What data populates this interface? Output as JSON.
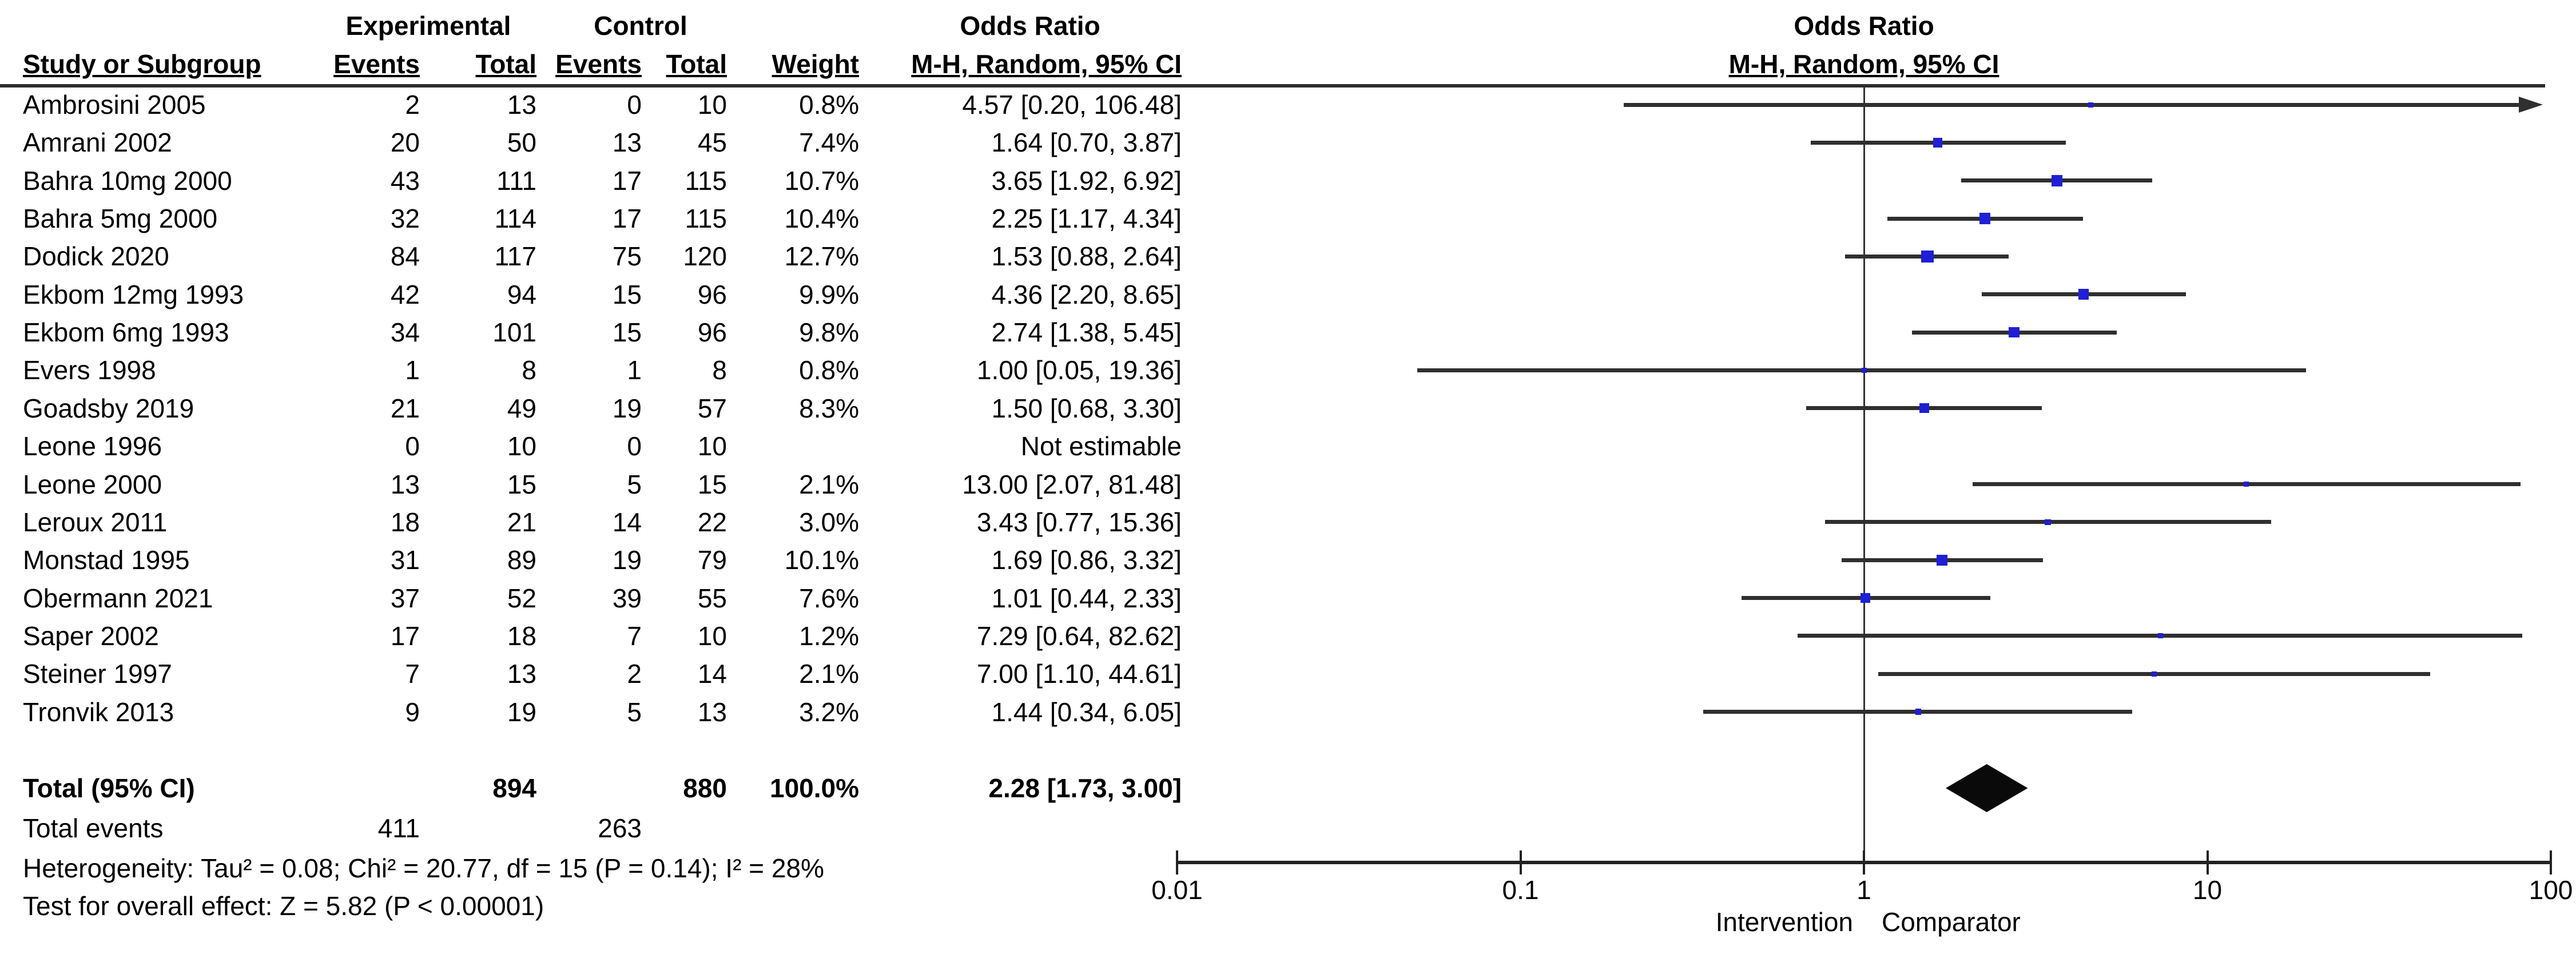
{
  "table_header": {
    "group1": "Experimental",
    "group2": "Control",
    "effect_header_top": "Odds Ratio",
    "study_col": "Study or Subgroup",
    "events_col": "Events",
    "total_col": "Total",
    "weight_col": "Weight",
    "method_col": "M-H, Random, 95% CI"
  },
  "plot_header": {
    "title": "Odds Ratio",
    "subtitle": "M-H, Random, 95% CI"
  },
  "chart_data": {
    "type": "forest",
    "x_scale": "log10",
    "xlim": [
      0.01,
      100
    ],
    "null_line": 1,
    "grid": false,
    "marker_color": "#1f1fd6",
    "line_color": "#2f2f2f",
    "axis_ticks": [
      0.01,
      0.1,
      1,
      10,
      100
    ],
    "axis_tick_labels": [
      "0.01",
      "0.1",
      "1",
      "10",
      "100"
    ],
    "axis_caption_left": "Intervention",
    "axis_caption_right": "Comparator",
    "studies": [
      {
        "name": "Ambrosini 2005",
        "exp_events": "2",
        "exp_total": "13",
        "ctrl_events": "0",
        "ctrl_total": "10",
        "weight": "0.8%",
        "weight_pct": 0.8,
        "ci_label": "4.57 [0.20, 106.48]",
        "or": 4.57,
        "lo": 0.2,
        "hi": 106.48,
        "arrow_hi": true
      },
      {
        "name": "Amrani 2002",
        "exp_events": "20",
        "exp_total": "50",
        "ctrl_events": "13",
        "ctrl_total": "45",
        "weight": "7.4%",
        "weight_pct": 7.4,
        "ci_label": "1.64 [0.70, 3.87]",
        "or": 1.64,
        "lo": 0.7,
        "hi": 3.87,
        "arrow_hi": false
      },
      {
        "name": "Bahra 10mg 2000",
        "exp_events": "43",
        "exp_total": "111",
        "ctrl_events": "17",
        "ctrl_total": "115",
        "weight": "10.7%",
        "weight_pct": 10.7,
        "ci_label": "3.65 [1.92, 6.92]",
        "or": 3.65,
        "lo": 1.92,
        "hi": 6.92,
        "arrow_hi": false
      },
      {
        "name": "Bahra 5mg 2000",
        "exp_events": "32",
        "exp_total": "114",
        "ctrl_events": "17",
        "ctrl_total": "115",
        "weight": "10.4%",
        "weight_pct": 10.4,
        "ci_label": "2.25 [1.17, 4.34]",
        "or": 2.25,
        "lo": 1.17,
        "hi": 4.34,
        "arrow_hi": false
      },
      {
        "name": "Dodick 2020",
        "exp_events": "84",
        "exp_total": "117",
        "ctrl_events": "75",
        "ctrl_total": "120",
        "weight": "12.7%",
        "weight_pct": 12.7,
        "ci_label": "1.53 [0.88, 2.64]",
        "or": 1.53,
        "lo": 0.88,
        "hi": 2.64,
        "arrow_hi": false
      },
      {
        "name": "Ekbom 12mg 1993",
        "exp_events": "42",
        "exp_total": "94",
        "ctrl_events": "15",
        "ctrl_total": "96",
        "weight": "9.9%",
        "weight_pct": 9.9,
        "ci_label": "4.36 [2.20, 8.65]",
        "or": 4.36,
        "lo": 2.2,
        "hi": 8.65,
        "arrow_hi": false
      },
      {
        "name": "Ekbom 6mg 1993",
        "exp_events": "34",
        "exp_total": "101",
        "ctrl_events": "15",
        "ctrl_total": "96",
        "weight": "9.8%",
        "weight_pct": 9.8,
        "ci_label": "2.74 [1.38, 5.45]",
        "or": 2.74,
        "lo": 1.38,
        "hi": 5.45,
        "arrow_hi": false
      },
      {
        "name": "Evers 1998",
        "exp_events": "1",
        "exp_total": "8",
        "ctrl_events": "1",
        "ctrl_total": "8",
        "weight": "0.8%",
        "weight_pct": 0.8,
        "ci_label": "1.00 [0.05, 19.36]",
        "or": 1.0,
        "lo": 0.05,
        "hi": 19.36,
        "arrow_hi": false
      },
      {
        "name": "Goadsby 2019",
        "exp_events": "21",
        "exp_total": "49",
        "ctrl_events": "19",
        "ctrl_total": "57",
        "weight": "8.3%",
        "weight_pct": 8.3,
        "ci_label": "1.50 [0.68, 3.30]",
        "or": 1.5,
        "lo": 0.68,
        "hi": 3.3,
        "arrow_hi": false
      },
      {
        "name": "Leone 1996",
        "exp_events": "0",
        "exp_total": "10",
        "ctrl_events": "0",
        "ctrl_total": "10",
        "weight": "",
        "weight_pct": null,
        "ci_label": "Not estimable",
        "or": null,
        "lo": null,
        "hi": null,
        "arrow_hi": false
      },
      {
        "name": "Leone 2000",
        "exp_events": "13",
        "exp_total": "15",
        "ctrl_events": "5",
        "ctrl_total": "15",
        "weight": "2.1%",
        "weight_pct": 2.1,
        "ci_label": "13.00 [2.07, 81.48]",
        "or": 13.0,
        "lo": 2.07,
        "hi": 81.48,
        "arrow_hi": false
      },
      {
        "name": "Leroux 2011",
        "exp_events": "18",
        "exp_total": "21",
        "ctrl_events": "14",
        "ctrl_total": "22",
        "weight": "3.0%",
        "weight_pct": 3.0,
        "ci_label": "3.43 [0.77, 15.36]",
        "or": 3.43,
        "lo": 0.77,
        "hi": 15.36,
        "arrow_hi": false
      },
      {
        "name": "Monstad 1995",
        "exp_events": "31",
        "exp_total": "89",
        "ctrl_events": "19",
        "ctrl_total": "79",
        "weight": "10.1%",
        "weight_pct": 10.1,
        "ci_label": "1.69 [0.86, 3.32]",
        "or": 1.69,
        "lo": 0.86,
        "hi": 3.32,
        "arrow_hi": false
      },
      {
        "name": "Obermann 2021",
        "exp_events": "37",
        "exp_total": "52",
        "ctrl_events": "39",
        "ctrl_total": "55",
        "weight": "7.6%",
        "weight_pct": 7.6,
        "ci_label": "1.01 [0.44, 2.33]",
        "or": 1.01,
        "lo": 0.44,
        "hi": 2.33,
        "arrow_hi": false
      },
      {
        "name": "Saper 2002",
        "exp_events": "17",
        "exp_total": "18",
        "ctrl_events": "7",
        "ctrl_total": "10",
        "weight": "1.2%",
        "weight_pct": 1.2,
        "ci_label": "7.29 [0.64, 82.62]",
        "or": 7.29,
        "lo": 0.64,
        "hi": 82.62,
        "arrow_hi": false
      },
      {
        "name": "Steiner 1997",
        "exp_events": "7",
        "exp_total": "13",
        "ctrl_events": "2",
        "ctrl_total": "14",
        "weight": "2.1%",
        "weight_pct": 2.1,
        "ci_label": "7.00 [1.10, 44.61]",
        "or": 7.0,
        "lo": 1.1,
        "hi": 44.61,
        "arrow_hi": false
      },
      {
        "name": "Tronvik 2013",
        "exp_events": "9",
        "exp_total": "19",
        "ctrl_events": "5",
        "ctrl_total": "13",
        "weight": "3.2%",
        "weight_pct": 3.2,
        "ci_label": "1.44 [0.34, 6.05]",
        "or": 1.44,
        "lo": 0.34,
        "hi": 6.05,
        "arrow_hi": false
      }
    ],
    "total": {
      "label": "Total (95% CI)",
      "exp_total": "894",
      "ctrl_total": "880",
      "weight": "100.0%",
      "ci_label": "2.28 [1.73, 3.00]",
      "or": 2.28,
      "lo": 1.73,
      "hi": 3.0
    },
    "total_events": {
      "label": "Total events",
      "exp_events": "411",
      "ctrl_events": "263"
    },
    "footer": {
      "heterogeneity": "Heterogeneity: Tau² = 0.08; Chi² = 20.77, df = 15 (P = 0.14); I² = 28%",
      "overall_effect": "Test for overall effect: Z = 5.82 (P < 0.00001)"
    }
  }
}
